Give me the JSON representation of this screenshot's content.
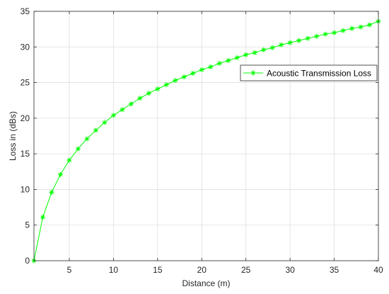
{
  "chart_data": {
    "type": "line",
    "title": "",
    "xlabel": "Distance (m)",
    "ylabel": "Loss in (dBs)",
    "xlim": [
      1,
      40
    ],
    "ylim": [
      0,
      35
    ],
    "xticks": [
      5,
      10,
      15,
      20,
      25,
      30,
      35,
      40
    ],
    "yticks": [
      0,
      5,
      10,
      15,
      20,
      25,
      30,
      35
    ],
    "grid": true,
    "legend_position": "top-right",
    "series": [
      {
        "name": "Acoustic Transmission Loss",
        "color": "#00ff00",
        "marker": "asterisk",
        "x": [
          1,
          2,
          3,
          4,
          5,
          6,
          7,
          8,
          9,
          10,
          11,
          12,
          13,
          14,
          15,
          16,
          17,
          18,
          19,
          20,
          21,
          22,
          23,
          24,
          25,
          26,
          27,
          28,
          29,
          30,
          31,
          32,
          33,
          34,
          35,
          36,
          37,
          38,
          39,
          40
        ],
        "y": [
          0.0,
          6.1,
          9.6,
          12.1,
          14.1,
          15.7,
          17.1,
          18.3,
          19.4,
          20.4,
          21.2,
          22.0,
          22.8,
          23.5,
          24.1,
          24.7,
          25.3,
          25.8,
          26.3,
          26.8,
          27.2,
          27.7,
          28.1,
          28.5,
          28.9,
          29.2,
          29.6,
          29.9,
          30.3,
          30.6,
          30.9,
          31.2,
          31.5,
          31.8,
          32.0,
          32.3,
          32.6,
          32.8,
          33.1,
          33.6
        ]
      }
    ]
  }
}
